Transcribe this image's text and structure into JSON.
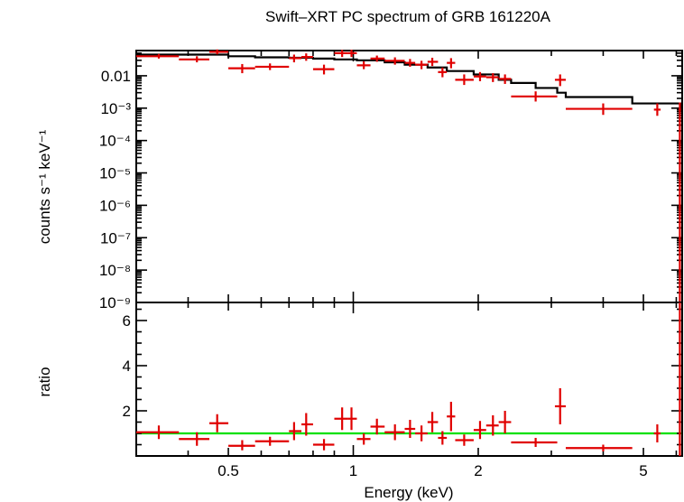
{
  "chart_data": [
    {
      "panel": "spectrum",
      "type": "scatter",
      "title": "Swift–XRT PC spectrum of GRB 161220A",
      "ylabel": "counts s⁻¹ keV⁻¹",
      "xlabel": "",
      "xscale": "log",
      "yscale": "log",
      "xlim": [
        0.3,
        6.2
      ],
      "ylim": [
        1e-09,
        0.06
      ],
      "y_ticks": [
        {
          "value": 0.01,
          "label": "0.01"
        },
        {
          "value": 0.001,
          "label": "10⁻³"
        },
        {
          "value": 0.0001,
          "label": "10⁻⁴"
        },
        {
          "value": 1e-05,
          "label": "10⁻⁵"
        },
        {
          "value": 1e-06,
          "label": "10⁻⁶"
        },
        {
          "value": 1e-07,
          "label": "10⁻⁷"
        },
        {
          "value": 1e-08,
          "label": "10⁻⁸"
        },
        {
          "value": 1e-09,
          "label": "10⁻⁹"
        }
      ],
      "data_color": "#e00000",
      "model_color": "#000000",
      "data": [
        {
          "x": 0.34,
          "xlo": 0.3,
          "xhi": 0.38,
          "y": 0.04,
          "ylo": 0.034,
          "yhi": 0.047
        },
        {
          "x": 0.42,
          "xlo": 0.38,
          "xhi": 0.45,
          "y": 0.032,
          "ylo": 0.026,
          "yhi": 0.04
        },
        {
          "x": 0.47,
          "xlo": 0.45,
          "xhi": 0.5,
          "y": 0.055,
          "ylo": 0.046,
          "yhi": 0.065
        },
        {
          "x": 0.54,
          "xlo": 0.5,
          "xhi": 0.58,
          "y": 0.017,
          "ylo": 0.012,
          "yhi": 0.023
        },
        {
          "x": 0.63,
          "xlo": 0.58,
          "xhi": 0.7,
          "y": 0.019,
          "ylo": 0.015,
          "yhi": 0.024
        },
        {
          "x": 0.72,
          "xlo": 0.7,
          "xhi": 0.75,
          "y": 0.035,
          "ylo": 0.026,
          "yhi": 0.045
        },
        {
          "x": 0.77,
          "xlo": 0.75,
          "xhi": 0.8,
          "y": 0.038,
          "ylo": 0.029,
          "yhi": 0.049
        },
        {
          "x": 0.85,
          "xlo": 0.8,
          "xhi": 0.9,
          "y": 0.016,
          "ylo": 0.011,
          "yhi": 0.022
        },
        {
          "x": 0.94,
          "xlo": 0.9,
          "xhi": 0.97,
          "y": 0.05,
          "ylo": 0.038,
          "yhi": 0.063
        },
        {
          "x": 0.99,
          "xlo": 0.97,
          "xhi": 1.02,
          "y": 0.05,
          "ylo": 0.038,
          "yhi": 0.064
        },
        {
          "x": 1.06,
          "xlo": 1.02,
          "xhi": 1.1,
          "y": 0.021,
          "ylo": 0.016,
          "yhi": 0.028
        },
        {
          "x": 1.14,
          "xlo": 1.1,
          "xhi": 1.19,
          "y": 0.034,
          "ylo": 0.027,
          "yhi": 0.042
        },
        {
          "x": 1.26,
          "xlo": 1.19,
          "xhi": 1.33,
          "y": 0.029,
          "ylo": 0.022,
          "yhi": 0.037
        },
        {
          "x": 1.37,
          "xlo": 1.33,
          "xhi": 1.41,
          "y": 0.025,
          "ylo": 0.019,
          "yhi": 0.033
        },
        {
          "x": 1.46,
          "xlo": 1.41,
          "xhi": 1.51,
          "y": 0.022,
          "ylo": 0.016,
          "yhi": 0.029
        },
        {
          "x": 1.55,
          "xlo": 1.51,
          "xhi": 1.6,
          "y": 0.027,
          "ylo": 0.02,
          "yhi": 0.036
        },
        {
          "x": 1.64,
          "xlo": 1.6,
          "xhi": 1.68,
          "y": 0.013,
          "ylo": 0.009,
          "yhi": 0.018
        },
        {
          "x": 1.72,
          "xlo": 1.68,
          "xhi": 1.76,
          "y": 0.025,
          "ylo": 0.017,
          "yhi": 0.035
        },
        {
          "x": 1.85,
          "xlo": 1.76,
          "xhi": 1.95,
          "y": 0.0075,
          "ylo": 0.0052,
          "yhi": 0.011
        },
        {
          "x": 2.02,
          "xlo": 1.95,
          "xhi": 2.09,
          "y": 0.0095,
          "ylo": 0.0068,
          "yhi": 0.013
        },
        {
          "x": 2.17,
          "xlo": 2.09,
          "xhi": 2.24,
          "y": 0.009,
          "ylo": 0.0064,
          "yhi": 0.012
        },
        {
          "x": 2.32,
          "xlo": 2.24,
          "xhi": 2.4,
          "y": 0.008,
          "ylo": 0.0056,
          "yhi": 0.011
        },
        {
          "x": 2.75,
          "xlo": 2.4,
          "xhi": 3.1,
          "y": 0.0023,
          "ylo": 0.0016,
          "yhi": 0.0033
        },
        {
          "x": 3.15,
          "xlo": 3.06,
          "xhi": 3.25,
          "y": 0.0075,
          "ylo": 0.0048,
          "yhi": 0.011
        },
        {
          "x": 4.0,
          "xlo": 3.25,
          "xhi": 4.7,
          "y": 0.00095,
          "ylo": 0.00062,
          "yhi": 0.0014
        },
        {
          "x": 5.4,
          "xlo": 5.3,
          "xhi": 5.5,
          "y": 0.0009,
          "ylo": 0.00058,
          "yhi": 0.0014
        },
        {
          "x": 6.12,
          "xlo": 6.08,
          "xhi": 6.16,
          "y": 0.0009,
          "ylo": 1e-09,
          "yhi": 0.0015
        }
      ],
      "model": [
        {
          "x": 0.3,
          "y": 0.045
        },
        {
          "x": 0.45,
          "y": 0.045
        },
        {
          "x": 0.5,
          "y": 0.04
        },
        {
          "x": 0.58,
          "y": 0.037
        },
        {
          "x": 0.7,
          "y": 0.036
        },
        {
          "x": 0.8,
          "y": 0.034
        },
        {
          "x": 0.9,
          "y": 0.032
        },
        {
          "x": 1.02,
          "y": 0.03
        },
        {
          "x": 1.19,
          "y": 0.026
        },
        {
          "x": 1.33,
          "y": 0.022
        },
        {
          "x": 1.51,
          "y": 0.018
        },
        {
          "x": 1.68,
          "y": 0.014
        },
        {
          "x": 1.95,
          "y": 0.011
        },
        {
          "x": 2.24,
          "y": 0.0075
        },
        {
          "x": 2.4,
          "y": 0.006
        },
        {
          "x": 2.75,
          "y": 0.0042
        },
        {
          "x": 3.1,
          "y": 0.003
        },
        {
          "x": 3.25,
          "y": 0.0022
        },
        {
          "x": 4.7,
          "y": 0.0014
        },
        {
          "x": 6.16,
          "y": 0.0009
        }
      ]
    },
    {
      "panel": "ratio",
      "type": "scatter",
      "xlabel": "Energy (keV)",
      "ylabel": "ratio",
      "xscale": "log",
      "yscale": "linear",
      "xlim": [
        0.3,
        6.2
      ],
      "ylim": [
        0,
        6.8
      ],
      "x_ticks": [
        {
          "value": 0.5,
          "label": "0.5"
        },
        {
          "value": 1,
          "label": "1"
        },
        {
          "value": 2,
          "label": "2"
        },
        {
          "value": 5,
          "label": "5"
        }
      ],
      "y_ticks": [
        {
          "value": 2,
          "label": "2"
        },
        {
          "value": 4,
          "label": "4"
        },
        {
          "value": 6,
          "label": "6"
        }
      ],
      "reference_line": {
        "y": 1,
        "color": "#00e000"
      },
      "data_color": "#e00000",
      "data": [
        {
          "x": 0.34,
          "xlo": 0.3,
          "xhi": 0.38,
          "y": 1.05,
          "ylo": 0.75,
          "yhi": 1.35
        },
        {
          "x": 0.42,
          "xlo": 0.38,
          "xhi": 0.45,
          "y": 0.75,
          "ylo": 0.45,
          "yhi": 1.05
        },
        {
          "x": 0.47,
          "xlo": 0.45,
          "xhi": 0.5,
          "y": 1.45,
          "ylo": 1.05,
          "yhi": 1.85
        },
        {
          "x": 0.54,
          "xlo": 0.5,
          "xhi": 0.58,
          "y": 0.45,
          "ylo": 0.25,
          "yhi": 0.7
        },
        {
          "x": 0.63,
          "xlo": 0.58,
          "xhi": 0.7,
          "y": 0.65,
          "ylo": 0.45,
          "yhi": 0.85
        },
        {
          "x": 0.72,
          "xlo": 0.7,
          "xhi": 0.75,
          "y": 1.1,
          "ylo": 0.7,
          "yhi": 1.5
        },
        {
          "x": 0.77,
          "xlo": 0.75,
          "xhi": 0.8,
          "y": 1.4,
          "ylo": 0.9,
          "yhi": 1.9
        },
        {
          "x": 0.85,
          "xlo": 0.8,
          "xhi": 0.9,
          "y": 0.5,
          "ylo": 0.25,
          "yhi": 0.75
        },
        {
          "x": 0.94,
          "xlo": 0.9,
          "xhi": 0.97,
          "y": 1.65,
          "ylo": 1.15,
          "yhi": 2.15
        },
        {
          "x": 0.99,
          "xlo": 0.97,
          "xhi": 1.02,
          "y": 1.65,
          "ylo": 1.15,
          "yhi": 2.15
        },
        {
          "x": 1.06,
          "xlo": 1.02,
          "xhi": 1.1,
          "y": 0.75,
          "ylo": 0.5,
          "yhi": 1.0
        },
        {
          "x": 1.14,
          "xlo": 1.1,
          "xhi": 1.19,
          "y": 1.3,
          "ylo": 0.95,
          "yhi": 1.65
        },
        {
          "x": 1.26,
          "xlo": 1.19,
          "xhi": 1.33,
          "y": 1.05,
          "ylo": 0.7,
          "yhi": 1.4
        },
        {
          "x": 1.37,
          "xlo": 1.33,
          "xhi": 1.41,
          "y": 1.2,
          "ylo": 0.8,
          "yhi": 1.6
        },
        {
          "x": 1.46,
          "xlo": 1.41,
          "xhi": 1.51,
          "y": 1.0,
          "ylo": 0.65,
          "yhi": 1.35
        },
        {
          "x": 1.55,
          "xlo": 1.51,
          "xhi": 1.6,
          "y": 1.5,
          "ylo": 1.05,
          "yhi": 1.95
        },
        {
          "x": 1.64,
          "xlo": 1.6,
          "xhi": 1.68,
          "y": 0.8,
          "ylo": 0.5,
          "yhi": 1.1
        },
        {
          "x": 1.72,
          "xlo": 1.68,
          "xhi": 1.76,
          "y": 1.75,
          "ylo": 1.1,
          "yhi": 2.4
        },
        {
          "x": 1.85,
          "xlo": 1.76,
          "xhi": 1.95,
          "y": 0.7,
          "ylo": 0.45,
          "yhi": 0.95
        },
        {
          "x": 2.02,
          "xlo": 1.95,
          "xhi": 2.09,
          "y": 1.15,
          "ylo": 0.75,
          "yhi": 1.55
        },
        {
          "x": 2.17,
          "xlo": 2.09,
          "xhi": 2.24,
          "y": 1.35,
          "ylo": 0.9,
          "yhi": 1.8
        },
        {
          "x": 2.32,
          "xlo": 2.24,
          "xhi": 2.4,
          "y": 1.5,
          "ylo": 1.0,
          "yhi": 2.0
        },
        {
          "x": 2.75,
          "xlo": 2.4,
          "xhi": 3.1,
          "y": 0.6,
          "ylo": 0.4,
          "yhi": 0.8
        },
        {
          "x": 3.15,
          "xlo": 3.06,
          "xhi": 3.25,
          "y": 2.2,
          "ylo": 1.4,
          "yhi": 3.0
        },
        {
          "x": 4.0,
          "xlo": 3.25,
          "xhi": 4.7,
          "y": 0.35,
          "ylo": 0.2,
          "yhi": 0.5
        },
        {
          "x": 5.4,
          "xlo": 5.3,
          "xhi": 5.5,
          "y": 1.0,
          "ylo": 0.6,
          "yhi": 1.4
        },
        {
          "x": 6.12,
          "xlo": 6.08,
          "xhi": 6.16,
          "y": 1.0,
          "ylo": 0.0,
          "yhi": 6.8
        }
      ]
    }
  ]
}
